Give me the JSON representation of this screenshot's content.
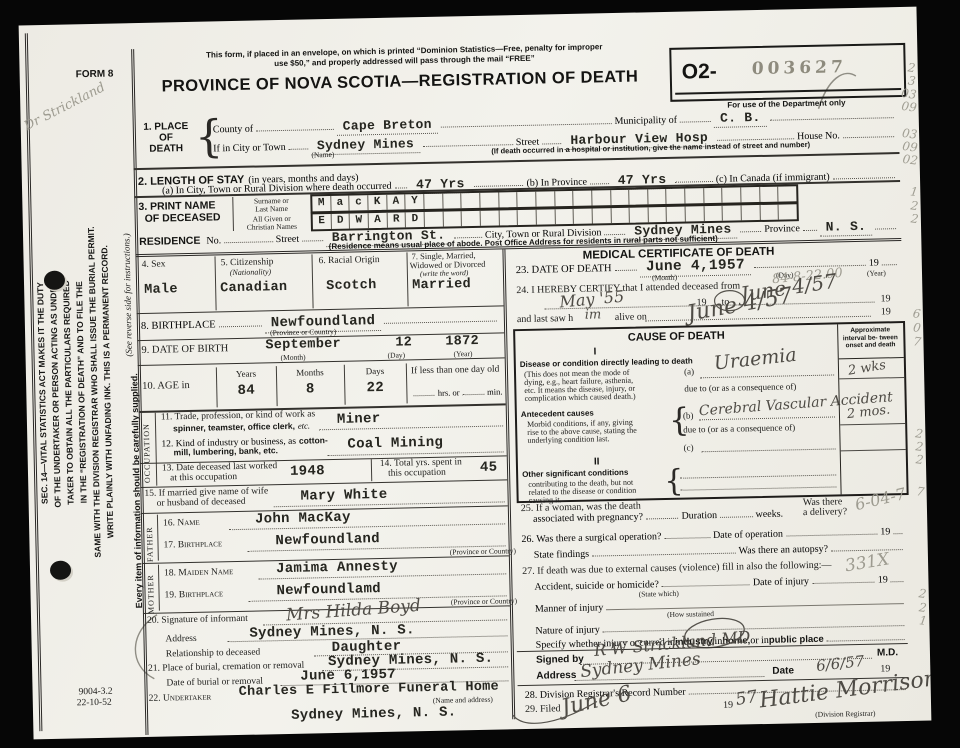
{
  "colors": {
    "paper": "#f1efe9",
    "ink": "#1c1c1a",
    "pencil": "#9d9b90",
    "stamp": "#8e8b7e"
  },
  "margin": {
    "form_label": "FORM 8",
    "doctor_note": "Dr Strickland",
    "statute_lines": [
      "SEC. 14—VITAL STATISTICS ACT MAKES IT THE DUTY",
      "OF THE UNDERTAKER OR PERSON ACTING AS UNDER-",
      "TAKER TO OBTAIN ALL THE PARTICULARS REQUIRED",
      "IN THE “REGISTRATION OF DEATH” AND TO FILE THE",
      "SAME WITH THE DIVISION REGISTRAR WHO SHALL ISSUE THE BURIAL PERMIT.",
      "WRITE PLAINLY WITH UNFADING INK.  THIS IS A PERMANENT RECORD."
    ],
    "see_reverse": "(See reverse side for instructions.)",
    "every_item": "Every item of information should be carefully supplied.",
    "print_code": "9004-3.2",
    "print_date": "22-10-52",
    "pencil_numbers": [
      "2",
      "3",
      "03",
      "09",
      "03",
      "09",
      "02",
      "1",
      "2",
      "2",
      "6",
      "0",
      "7",
      "2",
      "2",
      "2",
      "7",
      "2",
      "2",
      "1"
    ]
  },
  "header": {
    "mail_line1": "This form, if placed in an envelope, on which is printed “Dominion Statistics—Free, penalty for improper",
    "mail_line2": "use $50,” and properly addressed will pass through the mail “FREE”",
    "title": "PROVINCE OF NOVA SCOTIA—REGISTRATION OF DEATH",
    "reg_prefix": "O2-",
    "reg_number": "003627",
    "dept_note": "For use of the Department only"
  },
  "place": {
    "sec1": "1. PLACE",
    "sec2": "OF",
    "sec3": "DEATH",
    "county_label": "County of",
    "county": "Cape Breton",
    "municipality_label": "Municipality of",
    "municipality": "C. B.",
    "city_label": "If in City or Town",
    "city": "Sydney Mines",
    "name_caption": "(Name)",
    "street_label": "Street",
    "street": "Harbour View Hosp",
    "house_label": "House No.",
    "hospital_note": "(If death occurred in a hospital or institution, give the name instead of street and number)"
  },
  "stay": {
    "heading": "2. LENGTH OF STAY",
    "heading_note": "(in years, months and days)",
    "a_label": "(a) In City, Town or Rural Division where death occurred",
    "a": "47 Yrs",
    "b_label": "(b) In Province",
    "b": "47 Yrs",
    "c_label": "(c) In Canada (if immigrant)"
  },
  "name": {
    "heading1": "3. PRINT NAME",
    "heading2": "OF DECEASED",
    "surname_label1": "Surname or",
    "surname_label2": "Last Name",
    "surname": "MacKAY",
    "given_label1": "All Given or",
    "given_label2": "Christian Names",
    "given": "EDWARD",
    "residence_label": "RESIDENCE",
    "no_label": "No.",
    "street_label": "Street",
    "street": "Barrington St.",
    "city_label": "City, Town or Rural Division",
    "city": "Sydney Mines",
    "province_label": "Province",
    "province": "N. S.",
    "note": "(Residence means usual place of abode.   Post Office Address for residents in rural parts not sufficient)"
  },
  "personal": {
    "sex_label": "4. Sex",
    "sex": "Male",
    "cit_label": "5. Citizenship",
    "cit_sub": "(Nationality)",
    "cit": "Canadian",
    "race_label": "6. Racial Origin",
    "race": "Scotch",
    "marital_label1": "7. Single, Married,",
    "marital_label2": "Widowed or Divorced",
    "marital_sub": "(write the word)",
    "marital": "Married",
    "birthplace_label": "8. BIRTHPLACE",
    "birthplace": "Newfoundland",
    "birthplace_cap": "(Province or Country)",
    "dob_label": "9. DATE OF BIRTH",
    "dob_month": "September",
    "dob_day": "12",
    "dob_year": "1872",
    "cap_month": "(Month)",
    "cap_day": "(Day)",
    "cap_year": "(Year)",
    "age_label": "10. AGE in",
    "years_label": "Years",
    "years": "84",
    "months_label": "Months",
    "months": "8",
    "days_label": "Days",
    "days": "22",
    "less_label": "If less than one day old",
    "hrs_label": "hrs. or",
    "min_label": "min."
  },
  "occupation": {
    "side": "OCCUPATION",
    "t11a": "11. Trade, profession, or kind of work as",
    "t11b": "spinner, teamster, office clerk,",
    "t11c": "etc.",
    "v11": "Miner",
    "t12a": "12. Kind of industry or business, as",
    "t12b": "cotton-",
    "t12c": "mill, lumbering, bank, etc.",
    "v12": "Coal Mining",
    "t13a": "13. Date deceased last worked",
    "t13b": "at this occupation",
    "v13": "1948",
    "t14a": "14. Total yrs. spent in",
    "t14b": "this occupation",
    "v14": "45",
    "t15a": "15. If married give name of wife",
    "t15b": "or husband of deceased",
    "v15": "Mary White"
  },
  "parents": {
    "father_side": "FATHER",
    "n16": "16. Name",
    "v16": "John MacKay",
    "n17": "17. Birthplace",
    "v17": "Newfoundland",
    "cap17": "(Province or Country)",
    "mother_side": "MOTHER",
    "n18": "18. Maiden Name",
    "v18": "Jamima Annesty",
    "n19": "19. Birthplace",
    "v19": "Newfoundlamd",
    "cap19": "(Province or Country)"
  },
  "informant": {
    "n20": "20. Signature of informant",
    "sig": "Mrs Hilda Boyd",
    "addr_label": "Address",
    "addr": "Sydney Mines, N. S.",
    "rel_label": "Relationship to deceased",
    "rel": "Daughter"
  },
  "burial": {
    "n21": "21. Place of burial, cremation or removal",
    "place": "Sydney Mines, N. S.",
    "date_label": "Date of burial or removal",
    "date": "June 6,1957",
    "n22": "22. Undertaker",
    "undertaker": "Charles E Fillmore Funeral Home",
    "cap": "(Name and address)",
    "undertaker_addr": "Sydney Mines, N. S."
  },
  "medical": {
    "heading": "MEDICAL CERTIFICATE OF DEATH",
    "n23": "23. DATE OF DEATH",
    "date": "June 4,1957",
    "cap_month": "(Month)",
    "cap_day": "(Day)",
    "cap_year": "(Year)",
    "y19": "19",
    "n24": "24. I HEREBY CERTIFY that I attended deceased from",
    "from": "May '55",
    "to_word": "to",
    "to": "June 4/57",
    "last1": "and last saw h",
    "last_im": "im",
    "last2": "alive on",
    "last_date": "June 4/57",
    "pencil_fee": "84-8-22.00"
  },
  "cause": {
    "heading": "CAUSE OF DEATH",
    "roman1": "I",
    "direct1": "Disease or condition directly leading to death",
    "direct2": "(This does not mean the mode of",
    "direct3": "dying, e.g., heart failure, asthenia,",
    "direct4": "etc.  It means the disease, injury, or",
    "direct5": "complication which caused death.)",
    "a_label": "(a)",
    "a": "Uraemia",
    "due1": "due to (or as a consequence of)",
    "ante1": "Antecedent causes",
    "ante2": "Morbid conditions, if any, giving",
    "ante3": "rise to the above cause, stating the",
    "ante4": "underlying condition last.",
    "b_label": "(b)",
    "b": "Cerebral Vascular Accident",
    "due2": "due to (or as a consequence of)",
    "c_label": "(c)",
    "roman2": "II",
    "other1": "Other significant conditions",
    "other2": "contributing to the death, but not",
    "other3": "related to the disease or condition",
    "other4": "causing it.",
    "int1": "Approximate",
    "int2": "interval be-",
    "int3": "tween onset",
    "int4": "and death",
    "int_a": "2 wks",
    "int_b": "2 mos."
  },
  "questions": {
    "n25a": "25. If a woman, was the death",
    "n25b": "associated with pregnancy?",
    "dur": "Duration",
    "weeks": "weeks.",
    "was1": "Was there",
    "was2": "a delivery?",
    "pencil25": "6-04-7",
    "n26": "26. Was there a surgical operation?",
    "op_date": "Date of operation",
    "y19": "19",
    "findings": "State findings",
    "autopsy": "Was there an autopsy?",
    "n27": "27. If death was due to external causes (violence) fill in also the following:—",
    "acc": "Accident, suicide or homicide?",
    "state_which": "(State which)",
    "injury_date": "Date of injury",
    "manner": "Manner of injury",
    "how": "(How sustained",
    "nature": "Nature of injury",
    "pencil27": "331X",
    "sp_pre": "Specify whether injury occurred in ",
    "sp_b1": "industry,",
    "sp_m1": " in ",
    "sp_b2": "home,",
    "sp_m2": " or in ",
    "sp_b3": "public place"
  },
  "certify": {
    "signed_label": "Signed by",
    "signed": "R W Strickland  MD",
    "md": "M.D.",
    "addr_label": "Address",
    "addr": "Sydney Mines",
    "date_label": "Date",
    "date": "6/6/57",
    "y19": "19",
    "n28": "28. Division Registrar's Record Number",
    "n29": "29. Filed",
    "filed": "June 6",
    "y19b": "19",
    "filed_yr": "57",
    "registrar": "Hattie Morrison",
    "cap": "(Division Registrar)"
  }
}
